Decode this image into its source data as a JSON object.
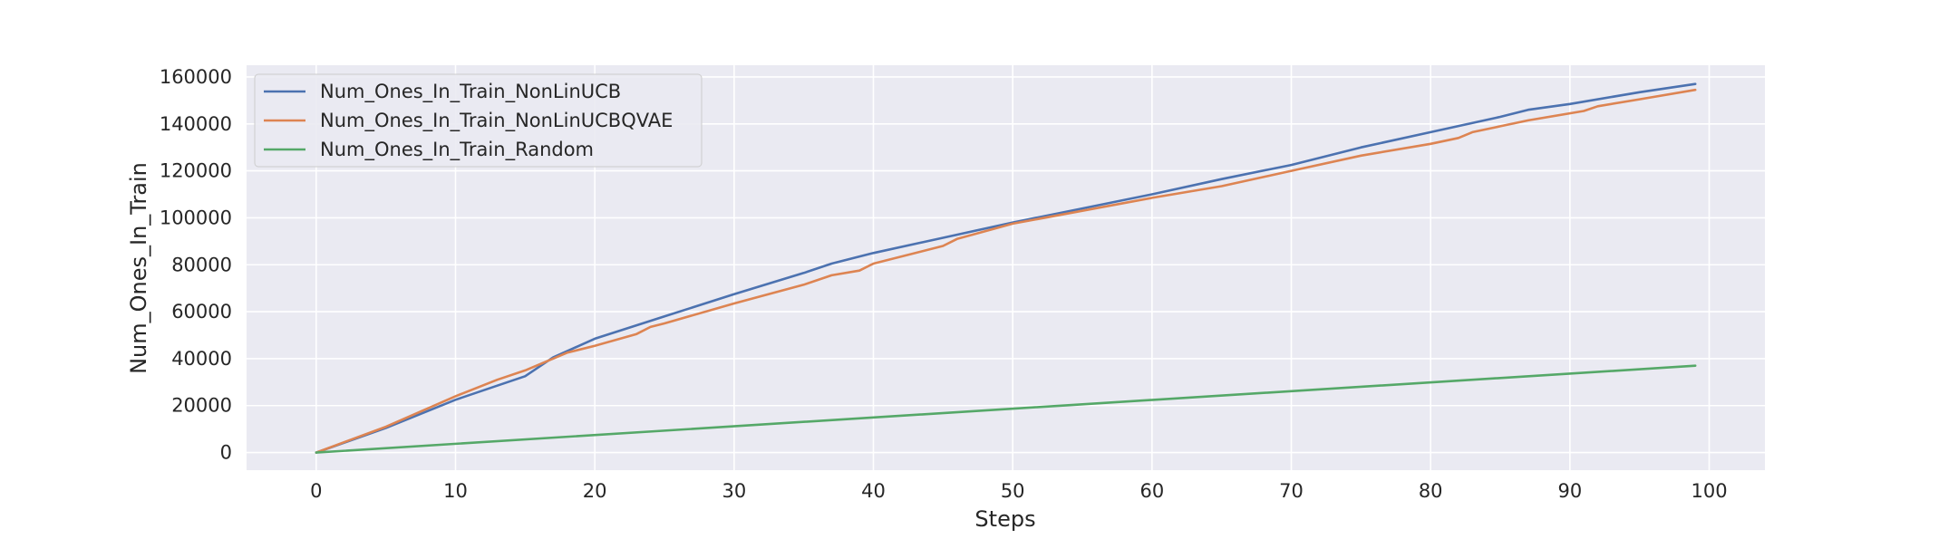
{
  "chart_data": {
    "type": "line",
    "title": "",
    "xlabel": "Steps",
    "ylabel": "Num_Ones_In_Train",
    "xlim": [
      -5,
      104
    ],
    "ylim": [
      -7500,
      165000
    ],
    "xticks": [
      0,
      10,
      20,
      30,
      40,
      50,
      60,
      70,
      80,
      90,
      100
    ],
    "yticks": [
      0,
      20000,
      40000,
      60000,
      80000,
      100000,
      120000,
      140000,
      160000
    ],
    "grid": true,
    "legend_position": "upper-left",
    "colors": {
      "background": "#eaeaf2",
      "grid": "#ffffff",
      "text": "#262626"
    },
    "series": [
      {
        "name": "Num_Ones_In_Train_NonLinUCB",
        "color": "#4c72b0",
        "points": [
          [
            0,
            0
          ],
          [
            5,
            10500
          ],
          [
            10,
            22500
          ],
          [
            13,
            28500
          ],
          [
            15,
            32500
          ],
          [
            17,
            40500
          ],
          [
            20,
            48500
          ],
          [
            25,
            58000
          ],
          [
            30,
            67500
          ],
          [
            35,
            76500
          ],
          [
            37,
            80500
          ],
          [
            40,
            85000
          ],
          [
            45,
            91500
          ],
          [
            50,
            98000
          ],
          [
            55,
            104000
          ],
          [
            60,
            110000
          ],
          [
            65,
            116500
          ],
          [
            70,
            122500
          ],
          [
            75,
            130000
          ],
          [
            80,
            136500
          ],
          [
            85,
            143000
          ],
          [
            87,
            146000
          ],
          [
            90,
            148500
          ],
          [
            95,
            153500
          ],
          [
            99,
            157000
          ]
        ]
      },
      {
        "name": "Num_Ones_In_Train_NonLinUCBQVAE",
        "color": "#dd8452",
        "points": [
          [
            0,
            0
          ],
          [
            5,
            11000
          ],
          [
            10,
            24000
          ],
          [
            13,
            31000
          ],
          [
            15,
            35000
          ],
          [
            18,
            42500
          ],
          [
            20,
            45500
          ],
          [
            23,
            50500
          ],
          [
            24,
            53500
          ],
          [
            25,
            55000
          ],
          [
            30,
            63500
          ],
          [
            35,
            71500
          ],
          [
            37,
            75500
          ],
          [
            39,
            77500
          ],
          [
            40,
            80500
          ],
          [
            45,
            88000
          ],
          [
            46,
            91000
          ],
          [
            50,
            97500
          ],
          [
            55,
            103000
          ],
          [
            60,
            108500
          ],
          [
            65,
            113500
          ],
          [
            70,
            120000
          ],
          [
            75,
            126500
          ],
          [
            80,
            131500
          ],
          [
            82,
            134000
          ],
          [
            83,
            136500
          ],
          [
            85,
            139000
          ],
          [
            87,
            141500
          ],
          [
            91,
            145500
          ],
          [
            92,
            147500
          ],
          [
            95,
            150500
          ],
          [
            99,
            154500
          ]
        ]
      },
      {
        "name": "Num_Ones_In_Train_Random",
        "color": "#55a868",
        "points": [
          [
            0,
            0
          ],
          [
            99,
            37000
          ]
        ]
      }
    ]
  }
}
